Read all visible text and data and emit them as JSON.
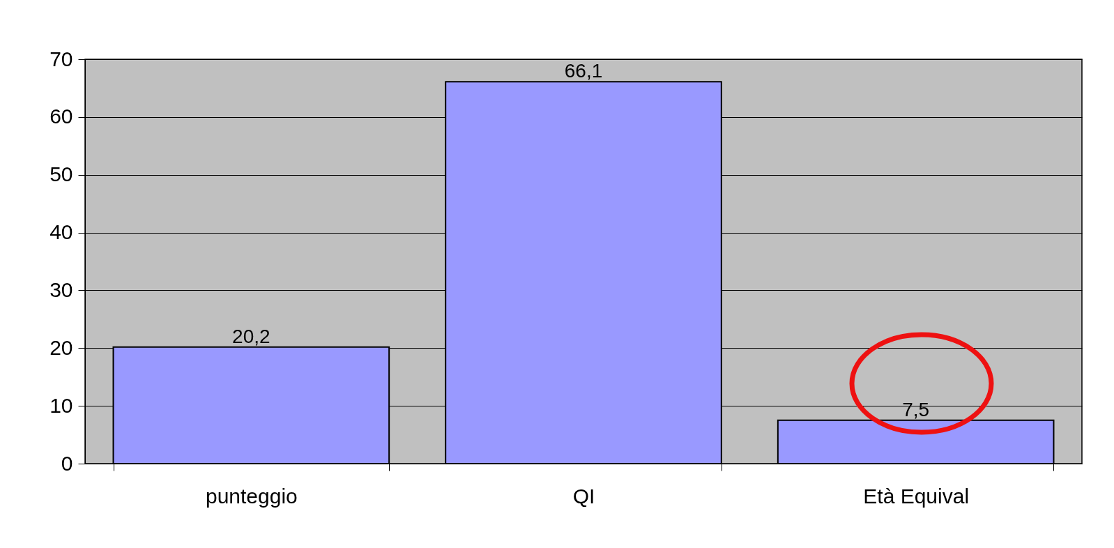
{
  "chart_data": {
    "type": "bar",
    "categories": [
      "punteggio",
      "QI",
      "Età Equival"
    ],
    "values": [
      20.2,
      66.1,
      7.5
    ],
    "value_labels": [
      "20,2",
      "66,1",
      "7,5"
    ],
    "color": "#9999ff",
    "ylim": [
      0,
      70
    ],
    "yticks": [
      0,
      10,
      20,
      30,
      40,
      50,
      60,
      70
    ],
    "grid": "y"
  }
}
